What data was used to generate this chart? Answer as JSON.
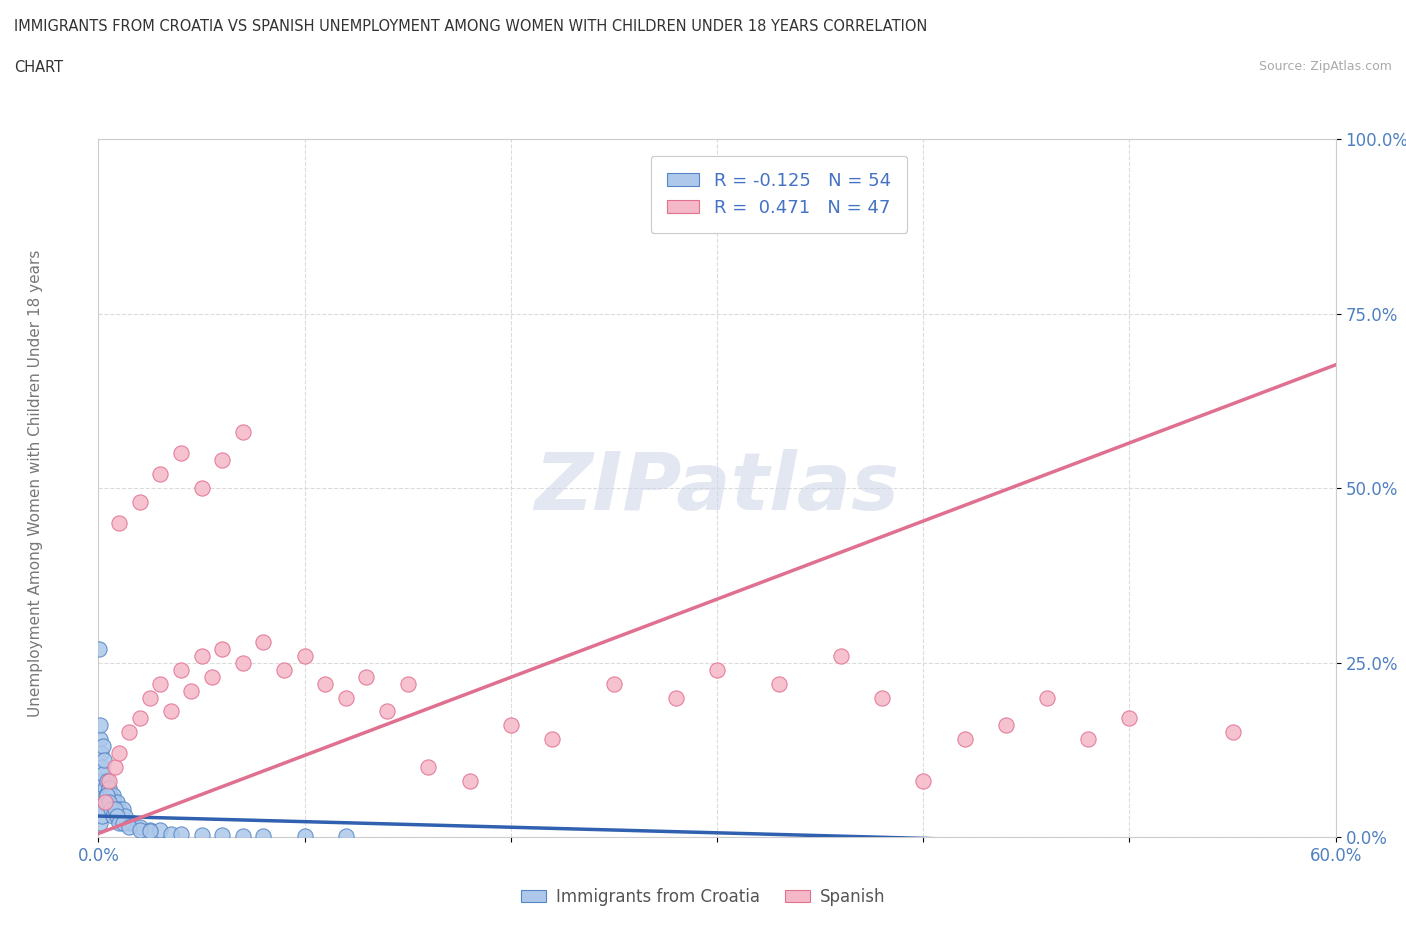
{
  "title_line1": "IMMIGRANTS FROM CROATIA VS SPANISH UNEMPLOYMENT AMONG WOMEN WITH CHILDREN UNDER 18 YEARS CORRELATION",
  "title_line2": "CHART",
  "source": "Source: ZipAtlas.com",
  "color_blue_fill": "#adc8ea",
  "color_blue_edge": "#5585c5",
  "color_pink_fill": "#f5b8c8",
  "color_pink_edge": "#e07090",
  "color_blue_line": "#3060b0",
  "color_pink_line": "#e07090",
  "grid_color": "#d8d8d8",
  "axis_color": "#cccccc",
  "bg_color": "#ffffff",
  "watermark_color": "#d0d8e8",
  "title_color": "#333333",
  "axis_label_color": "#777777",
  "tick_color": "#5080c0",
  "legend_text_color": "#4472c4",
  "xlim": [
    0,
    60
  ],
  "ylim": [
    0,
    100
  ],
  "x_ticks": [
    0,
    10,
    20,
    30,
    40,
    50,
    60
  ],
  "y_ticks": [
    0,
    25,
    50,
    75,
    100
  ],
  "blue_slope": -0.08,
  "blue_intercept": 3.0,
  "pink_slope_pct": 1.12,
  "pink_intercept_pct": 0.5,
  "blue_points_x": [
    0.05,
    0.08,
    0.1,
    0.12,
    0.15,
    0.18,
    0.2,
    0.22,
    0.25,
    0.3,
    0.35,
    0.4,
    0.45,
    0.5,
    0.55,
    0.6,
    0.65,
    0.7,
    0.75,
    0.8,
    0.85,
    0.9,
    1.0,
    1.1,
    1.2,
    1.3,
    1.5,
    1.7,
    2.0,
    2.5,
    3.0,
    3.5,
    4.0,
    5.0,
    6.0,
    7.0,
    8.0,
    10.0,
    12.0,
    0.1,
    0.15,
    0.2,
    0.3,
    0.4,
    0.5,
    0.6,
    0.7,
    0.8,
    0.9,
    1.0,
    1.2,
    1.5,
    2.0,
    2.5
  ],
  "blue_points_y": [
    27.0,
    14.0,
    16.0,
    12.0,
    10.0,
    8.0,
    13.0,
    9.0,
    11.0,
    7.0,
    6.0,
    8.0,
    5.0,
    7.0,
    6.0,
    5.0,
    4.0,
    6.0,
    5.0,
    4.0,
    3.0,
    5.0,
    4.0,
    3.0,
    4.0,
    3.0,
    2.0,
    2.0,
    1.5,
    1.0,
    1.0,
    0.5,
    0.5,
    0.3,
    0.3,
    0.2,
    0.2,
    0.1,
    0.1,
    2.0,
    3.0,
    4.0,
    5.0,
    6.0,
    5.0,
    4.0,
    3.0,
    4.0,
    3.0,
    2.0,
    2.0,
    1.5,
    1.0,
    0.8
  ],
  "pink_points_x": [
    0.3,
    0.5,
    0.8,
    1.0,
    1.5,
    2.0,
    2.5,
    3.0,
    3.5,
    4.0,
    4.5,
    5.0,
    5.5,
    6.0,
    7.0,
    8.0,
    9.0,
    10.0,
    11.0,
    12.0,
    13.0,
    14.0,
    15.0,
    16.0,
    18.0,
    20.0,
    22.0,
    25.0,
    28.0,
    30.0,
    33.0,
    36.0,
    38.0,
    40.0,
    42.0,
    44.0,
    46.0,
    48.0,
    50.0,
    55.0,
    1.0,
    2.0,
    3.0,
    4.0,
    5.0,
    6.0,
    7.0
  ],
  "pink_points_y": [
    5.0,
    8.0,
    10.0,
    12.0,
    15.0,
    17.0,
    20.0,
    22.0,
    18.0,
    24.0,
    21.0,
    26.0,
    23.0,
    27.0,
    25.0,
    28.0,
    24.0,
    26.0,
    22.0,
    20.0,
    23.0,
    18.0,
    22.0,
    10.0,
    8.0,
    16.0,
    14.0,
    22.0,
    20.0,
    24.0,
    22.0,
    26.0,
    20.0,
    8.0,
    14.0,
    16.0,
    20.0,
    14.0,
    17.0,
    15.0,
    45.0,
    48.0,
    52.0,
    55.0,
    50.0,
    54.0,
    58.0
  ]
}
